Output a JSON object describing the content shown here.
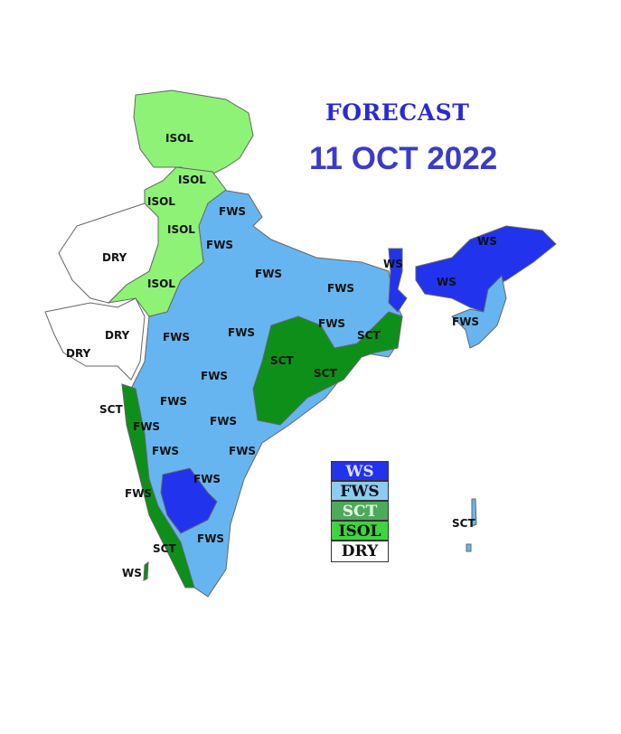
{
  "header": {
    "title": "FORECAST",
    "date": "11 OCT 2022"
  },
  "colors": {
    "WS": "#2233ee",
    "FWS": "#66b5f0",
    "SCT": "#0d8f1a",
    "ISOL": "#8df276",
    "DRY": "#ffffff",
    "legend_SCT": "#4daa5a",
    "legend_ISOL": "#3fd43f"
  },
  "legend": [
    {
      "key": "WS",
      "label": "WS"
    },
    {
      "key": "FWS",
      "label": "FWS"
    },
    {
      "key": "SCT",
      "label": "SCT"
    },
    {
      "key": "ISOL",
      "label": "ISOL"
    },
    {
      "key": "DRY",
      "label": "DRY"
    }
  ],
  "region_labels": [
    {
      "text": "ISOL",
      "cat": "ISOL"
    },
    {
      "text": "ISOL",
      "cat": "ISOL"
    },
    {
      "text": "ISOL",
      "cat": "ISOL"
    },
    {
      "text": "ISOL",
      "cat": "ISOL"
    },
    {
      "text": "ISOL",
      "cat": "ISOL"
    },
    {
      "text": "DRY",
      "cat": "DRY"
    },
    {
      "text": "DRY",
      "cat": "DRY"
    },
    {
      "text": "DRY",
      "cat": "DRY"
    },
    {
      "text": "FWS",
      "cat": "FWS"
    },
    {
      "text": "FWS",
      "cat": "FWS"
    },
    {
      "text": "FWS",
      "cat": "FWS"
    },
    {
      "text": "FWS",
      "cat": "FWS"
    },
    {
      "text": "FWS",
      "cat": "FWS"
    },
    {
      "text": "FWS",
      "cat": "FWS"
    },
    {
      "text": "FWS",
      "cat": "FWS"
    },
    {
      "text": "FWS",
      "cat": "FWS"
    },
    {
      "text": "FWS",
      "cat": "FWS"
    },
    {
      "text": "FWS",
      "cat": "FWS"
    },
    {
      "text": "FWS",
      "cat": "FWS"
    },
    {
      "text": "FWS",
      "cat": "FWS"
    },
    {
      "text": "FWS",
      "cat": "FWS"
    },
    {
      "text": "FWS",
      "cat": "FWS"
    },
    {
      "text": "FWS",
      "cat": "FWS"
    },
    {
      "text": "FWS",
      "cat": "FWS"
    },
    {
      "text": "FWS",
      "cat": "FWS"
    },
    {
      "text": "SCT",
      "cat": "SCT"
    },
    {
      "text": "SCT",
      "cat": "SCT"
    },
    {
      "text": "SCT",
      "cat": "SCT"
    },
    {
      "text": "SCT",
      "cat": "SCT"
    },
    {
      "text": "SCT",
      "cat": "SCT"
    },
    {
      "text": "SCT",
      "cat": "SCT"
    },
    {
      "text": "WS",
      "cat": "WS"
    },
    {
      "text": "WS",
      "cat": "WS"
    },
    {
      "text": "WS",
      "cat": "WS"
    },
    {
      "text": "WS",
      "cat": "WS"
    }
  ]
}
